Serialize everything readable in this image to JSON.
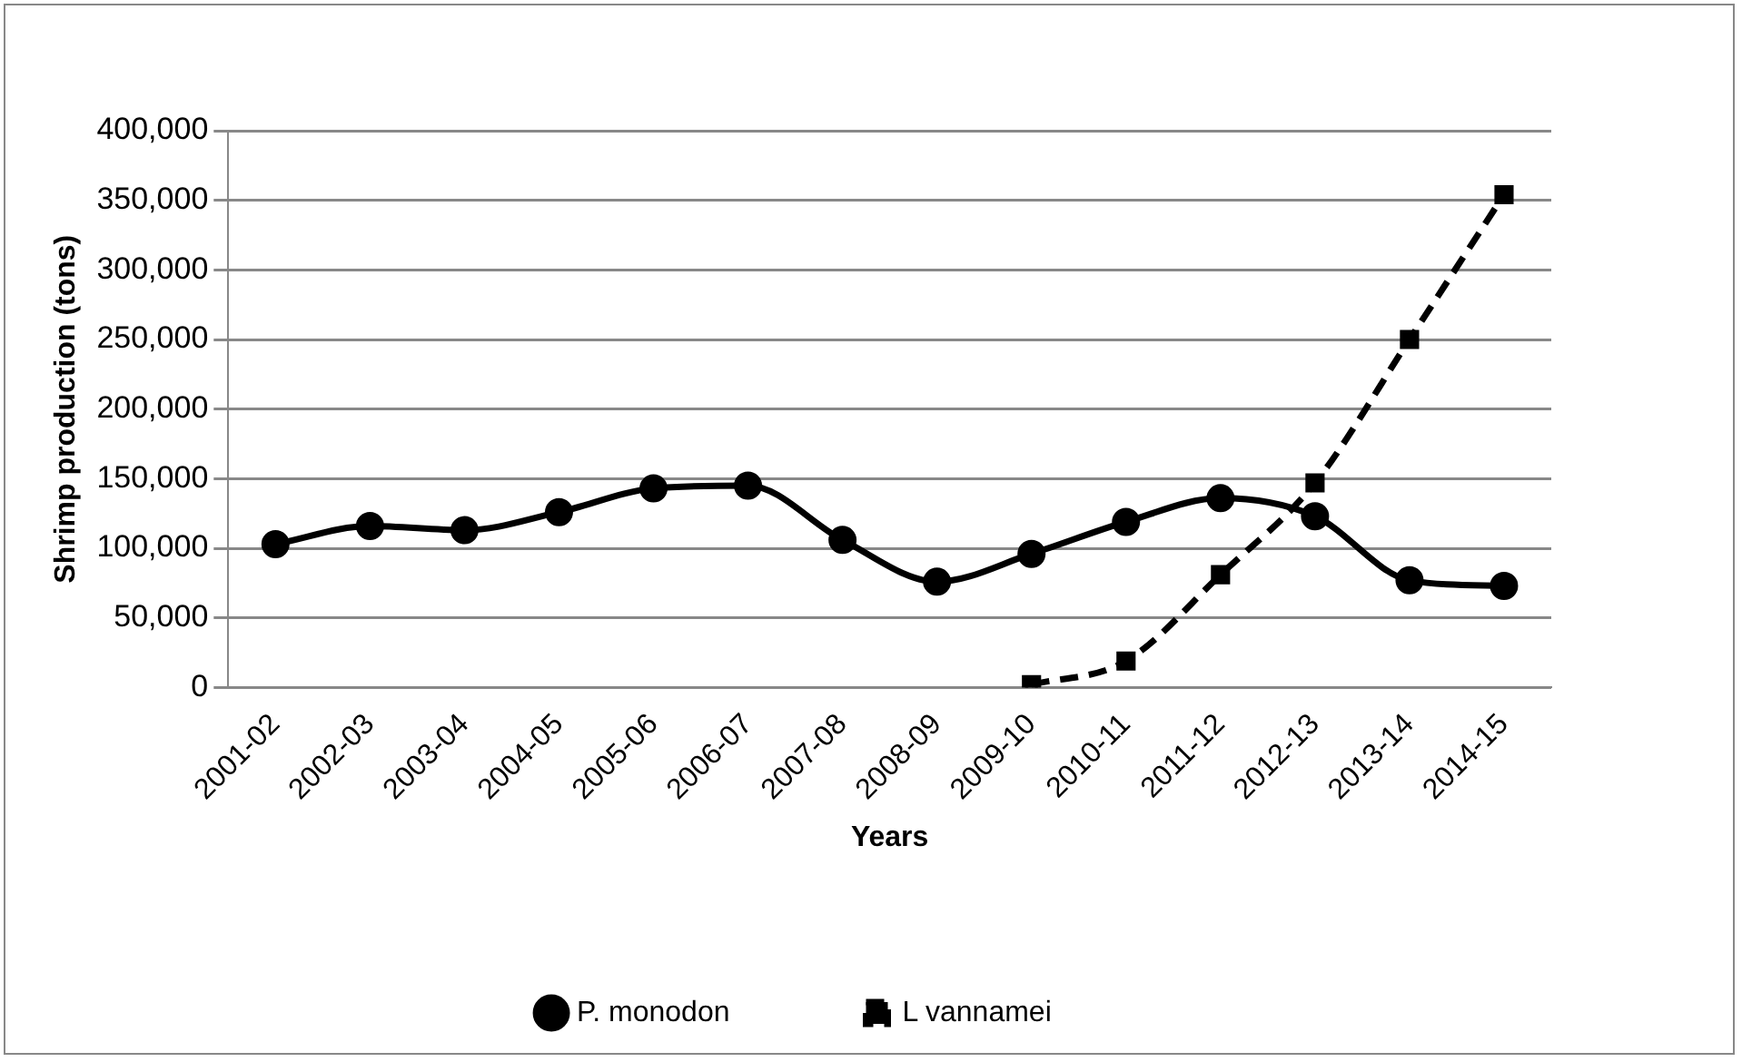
{
  "chart_data": {
    "type": "line",
    "xlabel": "Years",
    "ylabel": "Shrimp production (tons)",
    "categories": [
      "2001-02",
      "2002-03",
      "2003-04",
      "2004-05",
      "2005-06",
      "2006-07",
      "2007-08",
      "2008-09",
      "2009-10",
      "2010-11",
      "2011-12",
      "2012-13",
      "2013-14",
      "2014-15"
    ],
    "series": [
      {
        "name": "P. monodon",
        "color": "#000000",
        "marker": "circle",
        "line_style": "solid",
        "values": [
          103000,
          116000,
          113000,
          126000,
          143000,
          145000,
          106000,
          76000,
          96000,
          119000,
          136000,
          123000,
          77000,
          73000
        ]
      },
      {
        "name": "L vannamei",
        "color": "#000000",
        "marker": "square",
        "line_style": "dashed",
        "values": [
          null,
          null,
          null,
          null,
          null,
          null,
          null,
          null,
          2000,
          19000,
          81000,
          147000,
          250000,
          354000
        ]
      }
    ],
    "ylim": [
      0,
      400000
    ],
    "yticks": [
      {
        "value": 0,
        "label": "0"
      },
      {
        "value": 50000,
        "label": "50,000"
      },
      {
        "value": 100000,
        "label": "100,000"
      },
      {
        "value": 150000,
        "label": "150,000"
      },
      {
        "value": 200000,
        "label": "200,000"
      },
      {
        "value": 250000,
        "label": "250,000"
      },
      {
        "value": 300000,
        "label": "300,000"
      },
      {
        "value": 350000,
        "label": "350,000"
      },
      {
        "value": 400000,
        "label": "400,000"
      }
    ],
    "grid": "y",
    "legend": "bottom"
  }
}
